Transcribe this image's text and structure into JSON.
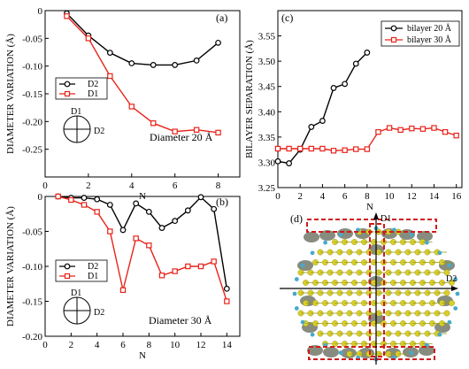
{
  "colors": {
    "black_series": "#000000",
    "red_series": "#e8231a",
    "molecule_yellow": "#d9cf2a",
    "molecule_gray": "#7a8070",
    "molecule_cyan": "#49a9c9",
    "dashed_box": "#d11a1a"
  },
  "chart_data": [
    {
      "panel": "(a)",
      "type": "line",
      "xlabel": "N",
      "ylabel": "DIAMETER VARIATION (Å)",
      "xlim": [
        0,
        9
      ],
      "ylim": [
        -0.3,
        0
      ],
      "xticks": [
        0,
        2,
        4,
        6,
        8
      ],
      "yticks": [
        0,
        -0.05,
        -0.1,
        -0.15,
        -0.2,
        -0.25
      ],
      "ytick_labels": [
        "0",
        "-0.05",
        "-0.10",
        "-0.15",
        "-0.20",
        "-0.25"
      ],
      "annotation": "Diameter 20 Å",
      "legend_placement": "left-middle",
      "inset_labels": [
        "D1",
        "D2"
      ],
      "series": [
        {
          "name": "D2",
          "color": "#000000",
          "marker": "circle",
          "x": [
            1,
            2,
            3,
            4,
            5,
            6,
            7,
            8
          ],
          "y": [
            -0.005,
            -0.045,
            -0.076,
            -0.095,
            -0.098,
            -0.098,
            -0.09,
            -0.058
          ]
        },
        {
          "name": "D1",
          "color": "#e8231a",
          "marker": "square",
          "x": [
            1,
            2,
            3,
            4,
            5,
            6,
            7,
            8
          ],
          "y": [
            -0.01,
            -0.05,
            -0.118,
            -0.173,
            -0.203,
            -0.218,
            -0.215,
            -0.22
          ]
        }
      ]
    },
    {
      "panel": "(b)",
      "type": "line",
      "xlabel": "N",
      "ylabel": "DIAMETER VARIATION (Å)",
      "xlim": [
        0,
        15
      ],
      "ylim": [
        -0.2,
        0
      ],
      "xticks": [
        0,
        2,
        4,
        6,
        8,
        10,
        12,
        14
      ],
      "yticks": [
        0,
        -0.05,
        -0.1,
        -0.15,
        -0.2
      ],
      "ytick_labels": [
        "0",
        "-0.05",
        "-0.10",
        "-0.15",
        "-0.20"
      ],
      "annotation": "Diameter 30 Å",
      "legend_placement": "left-middle",
      "inset_labels": [
        "D1",
        "D2"
      ],
      "series": [
        {
          "name": "D2",
          "color": "#000000",
          "marker": "circle",
          "x": [
            1,
            2,
            3,
            4,
            5,
            6,
            7,
            8,
            9,
            10,
            11,
            12,
            13,
            14
          ],
          "y": [
            0,
            -0.002,
            -0.002,
            -0.004,
            -0.012,
            -0.048,
            -0.01,
            -0.022,
            -0.045,
            -0.035,
            -0.02,
            -0.001,
            -0.018,
            -0.132
          ]
        },
        {
          "name": "D1",
          "color": "#e8231a",
          "marker": "square",
          "x": [
            1,
            2,
            3,
            4,
            5,
            6,
            7,
            8,
            9,
            10,
            11,
            12,
            13,
            14
          ],
          "y": [
            0,
            -0.005,
            -0.012,
            -0.022,
            -0.05,
            -0.134,
            -0.06,
            -0.07,
            -0.113,
            -0.107,
            -0.1,
            -0.1,
            -0.093,
            -0.15
          ]
        }
      ]
    },
    {
      "panel": "(c)",
      "type": "line",
      "xlabel": "N",
      "ylabel": "BILAYER SEPARATION (Å)",
      "xlim": [
        0,
        16.5
      ],
      "ylim": [
        3.25,
        3.6
      ],
      "xticks": [
        0,
        2,
        4,
        6,
        8,
        10,
        12,
        14,
        16
      ],
      "yticks": [
        3.25,
        3.3,
        3.35,
        3.4,
        3.45,
        3.5,
        3.55
      ],
      "ytick_labels": [
        "3.25",
        "3.30",
        "3.35",
        "3.40",
        "3.45",
        "3.50",
        "3.55"
      ],
      "legend_placement": "top-right",
      "series": [
        {
          "name": "bilayer 20 Å",
          "color": "#000000",
          "marker": "circle",
          "x": [
            0,
            1,
            2,
            3,
            4,
            5,
            6,
            7,
            8
          ],
          "y": [
            3.302,
            3.298,
            3.325,
            3.37,
            3.382,
            3.447,
            3.455,
            3.495,
            3.517
          ]
        },
        {
          "name": "bilayer 30 Å",
          "color": "#e8231a",
          "marker": "square",
          "x": [
            0,
            1,
            2,
            3,
            4,
            5,
            6,
            7,
            8,
            9,
            10,
            11,
            12,
            13,
            14,
            15,
            16
          ],
          "y": [
            3.327,
            3.327,
            3.327,
            3.327,
            3.327,
            3.323,
            3.324,
            3.326,
            3.326,
            3.36,
            3.368,
            3.364,
            3.367,
            3.366,
            3.368,
            3.36,
            3.353
          ]
        }
      ]
    }
  ],
  "panel_d": {
    "label": "(d)",
    "axis_labels": [
      "D1",
      "D2"
    ]
  }
}
